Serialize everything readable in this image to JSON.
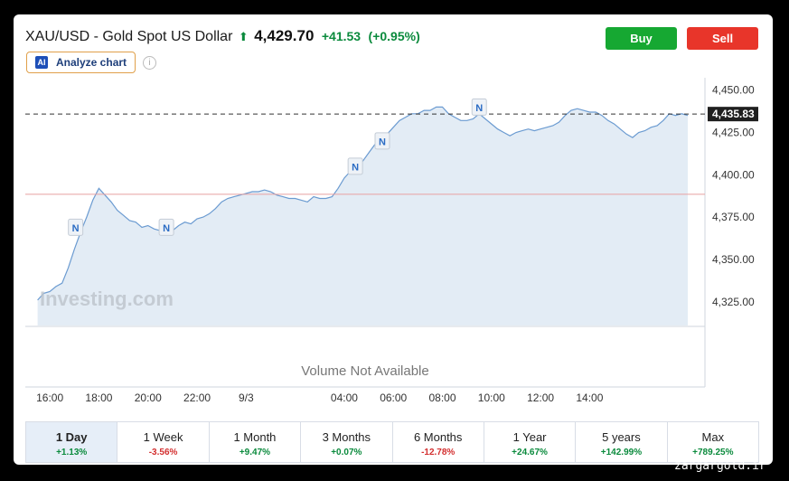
{
  "header": {
    "title": "XAU/USD - Gold Spot US Dollar",
    "arrow": "⬆",
    "price": "4,429.70",
    "change": "+41.53",
    "change_pct": "(+0.95%)",
    "buy_label": "Buy",
    "sell_label": "Sell",
    "analyze_label": "Analyze chart",
    "ai_icon": "AI",
    "info_icon": "i"
  },
  "chart_data": {
    "type": "area",
    "x_tick_labels": [
      "16:00",
      "18:00",
      "20:00",
      "22:00",
      "9/3",
      "04:00",
      "06:00",
      "08:00",
      "10:00",
      "12:00",
      "14:00"
    ],
    "y_tick_labels": [
      "4,450.00",
      "4,425.00",
      "4,400.00",
      "4,375.00",
      "4,350.00",
      "4,325.00"
    ],
    "y_ticks": [
      4450,
      4425,
      4400,
      4375,
      4350,
      4325
    ],
    "ylim": [
      4311,
      4453
    ],
    "last_price_label": "4,435.83",
    "last_price": 4435.83,
    "previous_close": 4388.5,
    "volume_label": "Volume Not Available",
    "watermark": "Investing.com",
    "news_marker_label": "N",
    "news_markers": [
      {
        "x": 17.05,
        "y": 4369
      },
      {
        "x": 20.75,
        "y": 4369
      },
      {
        "x": 28.45,
        "y": 4405
      },
      {
        "x": 29.55,
        "y": 4420
      },
      {
        "x": 33.5,
        "y": 4440
      }
    ],
    "series": [
      {
        "x": [
          15.5,
          15.75,
          16.0,
          16.25,
          16.5,
          16.75,
          17.0,
          17.25,
          17.5,
          17.75,
          18.0,
          18.25,
          18.5,
          18.75,
          19.0,
          19.25,
          19.5,
          19.75,
          20.0,
          20.25,
          20.5,
          20.75,
          21.0,
          21.25,
          21.5,
          21.75,
          22.0,
          22.25,
          22.5,
          22.75,
          23.0,
          23.25,
          23.5,
          23.75,
          24.0,
          24.25,
          24.5,
          24.75,
          25.0,
          25.25,
          25.5,
          25.75,
          26.0,
          26.25,
          26.5,
          26.75,
          27.0,
          27.25,
          27.5,
          27.75,
          28.0,
          28.25,
          28.5,
          28.75,
          29.0,
          29.25,
          29.5,
          29.75,
          30.0,
          30.25,
          30.5,
          30.75,
          31.0,
          31.25,
          31.5,
          31.75,
          32.0,
          32.25,
          32.5,
          32.75,
          33.0,
          33.25,
          33.5,
          33.75,
          34.0,
          34.25,
          34.5,
          34.75,
          35.0,
          35.25,
          35.5,
          35.75,
          36.0,
          36.25,
          36.5,
          36.75,
          37.0,
          37.25,
          37.5,
          37.75,
          38.0,
          38.25,
          38.5,
          38.75,
          39.0,
          39.25,
          39.5,
          39.75,
          40.0,
          40.25,
          40.5,
          40.75,
          41.0,
          41.25,
          41.5,
          41.75,
          42.0
        ],
        "values": [
          4326,
          4330,
          4331,
          4334,
          4336,
          4345,
          4356,
          4366,
          4375,
          4385,
          4392,
          4388,
          4384,
          4379,
          4376,
          4373,
          4372,
          4369,
          4370,
          4368,
          4367,
          4369,
          4367,
          4370,
          4372,
          4371,
          4374,
          4375,
          4377,
          4380,
          4384,
          4386,
          4387,
          4388,
          4389,
          4390,
          4390,
          4391,
          4390,
          4388,
          4387,
          4386,
          4386,
          4385,
          4384,
          4387,
          4386,
          4386,
          4387,
          4392,
          4398,
          4402,
          4405,
          4408,
          4413,
          4418,
          4420,
          4424,
          4428,
          4432,
          4434,
          4436,
          4436,
          4438,
          4438,
          4440,
          4440,
          4436,
          4434,
          4432,
          4432,
          4433,
          4436,
          4433,
          4430,
          4427,
          4425,
          4423,
          4425,
          4426,
          4427,
          4426,
          4427,
          4428,
          4429,
          4431,
          4435,
          4438,
          4439,
          4438,
          4437,
          4437,
          4435,
          4432,
          4430,
          4427,
          4424,
          4422,
          4425,
          4426,
          4428,
          4429,
          4432,
          4436,
          4435,
          4436,
          4435
        ]
      }
    ]
  },
  "tabs": [
    {
      "label": "1 Day",
      "change": "+1.13%",
      "dir": "pos"
    },
    {
      "label": "1 Week",
      "change": "-3.56%",
      "dir": "neg"
    },
    {
      "label": "1 Month",
      "change": "+9.47%",
      "dir": "pos"
    },
    {
      "label": "3 Months",
      "change": "+0.07%",
      "dir": "pos"
    },
    {
      "label": "6 Months",
      "change": "-12.78%",
      "dir": "neg"
    },
    {
      "label": "1 Year",
      "change": "+24.67%",
      "dir": "pos"
    },
    {
      "label": "5 years",
      "change": "+142.99%",
      "dir": "pos"
    },
    {
      "label": "Max",
      "change": "+789.25%",
      "dir": "pos"
    }
  ],
  "active_tab": 0,
  "colors": {
    "line": "#6b9bd1",
    "area": "#e3ecf5",
    "positive": "#0a8a3c",
    "negative": "#d32f2f",
    "prev_close_line": "#e8a0a0",
    "buy": "#16a832",
    "sell": "#e8352a"
  },
  "watermark_site": "zargargold.ir"
}
